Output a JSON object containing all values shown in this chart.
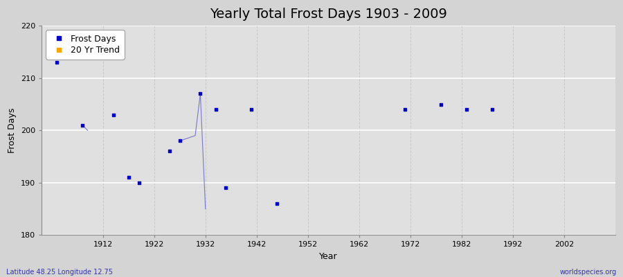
{
  "title": "Yearly Total Frost Days 1903 - 2009",
  "xlabel": "Year",
  "ylabel": "Frost Days",
  "subtitle_left": "Latitude 48.25 Longitude 12.75",
  "subtitle_right": "worldspecies.org",
  "ylim": [
    180,
    220
  ],
  "xlim": [
    1900,
    2012
  ],
  "yticks": [
    180,
    190,
    200,
    210,
    220
  ],
  "xticks": [
    1912,
    1922,
    1932,
    1942,
    1952,
    1962,
    1972,
    1982,
    1992,
    2002
  ],
  "scatter_x": [
    1903,
    1908,
    1914,
    1917,
    1919,
    1925,
    1927,
    1931,
    1934,
    1936,
    1941,
    1946,
    1971,
    1978,
    1983,
    1988
  ],
  "scatter_y": [
    213,
    201,
    203,
    191,
    190,
    196,
    198,
    207,
    204,
    189,
    204,
    186,
    204,
    205,
    204,
    204
  ],
  "line_segments": [
    {
      "x": [
        1908,
        1909
      ],
      "y": [
        201,
        200
      ]
    },
    {
      "x": [
        1927,
        1930,
        1931,
        1932
      ],
      "y": [
        198,
        199,
        207,
        185
      ]
    }
  ],
  "scatter_color": "#0000cc",
  "line_color": "#7777cc",
  "trend_color": "#ffa500",
  "fig_bg_color": "#d4d4d4",
  "plot_bg_color": "#e0e0e0",
  "grid_color_h": "#ffffff",
  "grid_color_v": "#c8c8c8",
  "title_fontsize": 14,
  "label_fontsize": 9,
  "tick_fontsize": 8
}
